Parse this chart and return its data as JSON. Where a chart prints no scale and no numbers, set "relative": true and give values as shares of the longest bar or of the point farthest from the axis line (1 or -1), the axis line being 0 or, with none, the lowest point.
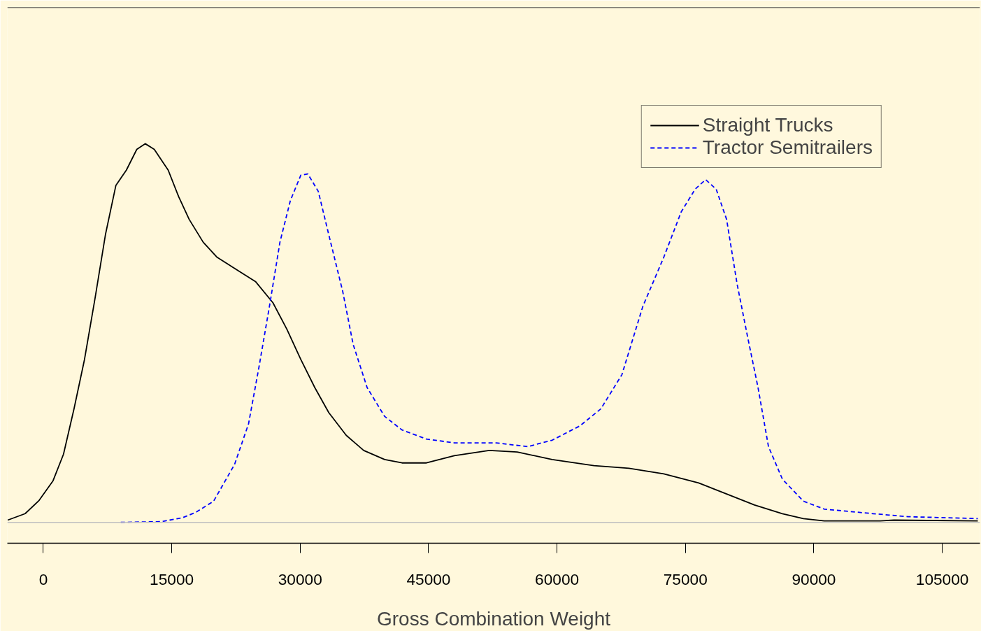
{
  "chart_data": {
    "type": "line",
    "relative": true,
    "xlabel": "Gross Combination Weight",
    "x": [
      -4160,
      -2120,
      -490,
      1140,
      2360,
      3590,
      4810,
      6030,
      7260,
      8480,
      9700,
      10920,
      11900,
      12960,
      14590,
      15810,
      17040,
      18670,
      20300,
      22740,
      24780,
      26820,
      28450,
      30080,
      31710,
      33340,
      35380,
      37420,
      39870,
      41900,
      44750,
      48010,
      52090,
      55350,
      59430,
      64320,
      68390,
      72470,
      76550,
      79810,
      83070,
      86330,
      88780,
      91220,
      97740,
      99370,
      109150
    ],
    "series": [
      {
        "name": "Straight Trucks",
        "color": "#000000",
        "line_style": "solid",
        "values": [
          0.006,
          0.023,
          0.058,
          0.11,
          0.18,
          0.3,
          0.43,
          0.59,
          0.76,
          0.89,
          0.93,
          0.985,
          1.0,
          0.985,
          0.93,
          0.86,
          0.8,
          0.74,
          0.7,
          0.665,
          0.636,
          0.58,
          0.51,
          0.43,
          0.356,
          0.29,
          0.23,
          0.19,
          0.166,
          0.157,
          0.157,
          0.176,
          0.19,
          0.186,
          0.166,
          0.15,
          0.143,
          0.128,
          0.104,
          0.075,
          0.046,
          0.023,
          0.01,
          0.004,
          0.004,
          0.006,
          0.004
        ]
      },
      {
        "name": "Tractor Semitrailers",
        "color": "#0000ff",
        "line_style": "dashed",
        "x": [
          9050,
          13780,
          16220,
          17850,
          19890,
          22340,
          23970,
          25190,
          26410,
          27640,
          28860,
          30080,
          30900,
          32120,
          33340,
          34970,
          36190,
          37820,
          39860,
          41900,
          44750,
          48010,
          52910,
          56570,
          59430,
          62690,
          65130,
          67580,
          70020,
          72470,
          74510,
          76140,
          77360,
          78590,
          79810,
          81030,
          82260,
          83480,
          84700,
          86330,
          88780,
          91220,
          96930,
          101000,
          109150
        ],
        "values": [
          0,
          0.002,
          0.012,
          0.027,
          0.056,
          0.153,
          0.26,
          0.41,
          0.57,
          0.74,
          0.85,
          0.917,
          0.92,
          0.874,
          0.76,
          0.61,
          0.47,
          0.356,
          0.28,
          0.244,
          0.22,
          0.21,
          0.21,
          0.2,
          0.217,
          0.255,
          0.3,
          0.39,
          0.57,
          0.7,
          0.82,
          0.88,
          0.905,
          0.88,
          0.8,
          0.63,
          0.49,
          0.356,
          0.2,
          0.114,
          0.056,
          0.035,
          0.023,
          0.015,
          0.01
        ]
      }
    ],
    "xlim": [
      -4200,
      109400
    ],
    "xticks": [
      0,
      15000,
      30000,
      45000,
      60000,
      75000,
      90000,
      105000
    ],
    "tick_labels": "x",
    "grid": false,
    "legend": "top right",
    "ref_lines": [
      {
        "axis": "y",
        "value": 0,
        "color": "#c0c0c0"
      }
    ]
  }
}
